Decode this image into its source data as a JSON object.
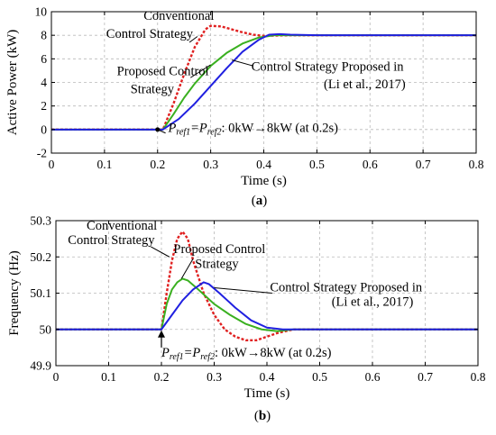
{
  "chart_data": [
    {
      "type": "line",
      "caption": "(a)",
      "xlabel": "Time (s)",
      "ylabel": "Active Power (kW)",
      "xlim": [
        0,
        0.8
      ],
      "ylim": [
        -2,
        10
      ],
      "xticks": [
        "0",
        "0.1",
        "0.2",
        "0.3",
        "0.4",
        "0.5",
        "0.6",
        "0.7",
        "0.8"
      ],
      "yticks": [
        "-2",
        "0",
        "2",
        "4",
        "6",
        "8",
        "10"
      ],
      "grid": true,
      "series": [
        {
          "name": "Conventional Control Strategy",
          "color": "#e02020",
          "style": "dashed",
          "x": [
            0,
            0.2,
            0.21,
            0.23,
            0.25,
            0.27,
            0.29,
            0.3,
            0.32,
            0.34,
            0.36,
            0.38,
            0.4,
            0.42,
            0.45,
            0.5,
            0.6,
            0.7,
            0.8
          ],
          "y": [
            0,
            0,
            0,
            2.2,
            4.7,
            7.0,
            8.5,
            8.8,
            8.75,
            8.5,
            8.25,
            8.05,
            7.95,
            7.97,
            8.0,
            8.0,
            8.0,
            8.0,
            8.0
          ]
        },
        {
          "name": "Proposed Control Strategy",
          "color": "#3ab020",
          "style": "solid",
          "x": [
            0,
            0.2,
            0.21,
            0.23,
            0.25,
            0.27,
            0.3,
            0.33,
            0.36,
            0.39,
            0.42,
            0.45,
            0.5,
            0.6,
            0.7,
            0.8
          ],
          "y": [
            0,
            0,
            0,
            1.3,
            2.7,
            3.9,
            5.4,
            6.5,
            7.3,
            7.8,
            8.0,
            8.0,
            8.0,
            8.0,
            8.0,
            8.0
          ]
        },
        {
          "name": "Control Strategy Proposed in (Li et al., 2017)",
          "color": "#2020e0",
          "style": "solid",
          "x": [
            0,
            0.2,
            0.21,
            0.24,
            0.27,
            0.3,
            0.33,
            0.36,
            0.39,
            0.41,
            0.43,
            0.45,
            0.5,
            0.6,
            0.7,
            0.8
          ],
          "y": [
            0,
            0,
            0,
            0.9,
            2.2,
            3.7,
            5.2,
            6.6,
            7.6,
            8.05,
            8.1,
            8.05,
            8.0,
            8.0,
            8.0,
            8.0
          ]
        }
      ],
      "annotations": [
        {
          "text": "Conventional",
          "x": 0.24,
          "y": 9.3
        },
        {
          "text": "Control Strategy",
          "x": 0.185,
          "y": 7.8
        },
        {
          "text": "Proposed Control",
          "x": 0.21,
          "y": 4.6
        },
        {
          "text": "Strategy",
          "x": 0.19,
          "y": 3.1
        },
        {
          "text": "Control Strategy Proposed in",
          "x": 0.52,
          "y": 5.0
        },
        {
          "text": "(Li et al., 2017)",
          "x": 0.59,
          "y": 3.5
        },
        {
          "text": "P",
          "sub": "ref1",
          "text2": "=P",
          "sub2": "ref2",
          "text3": ": 0kW→8kW (at 0.2s)",
          "x": 0.22,
          "y": -0.2
        }
      ]
    },
    {
      "type": "line",
      "caption": "(b)",
      "xlabel": "Time (s)",
      "ylabel": "Frequency (Hz)",
      "xlim": [
        0,
        0.8
      ],
      "ylim": [
        49.9,
        50.3
      ],
      "xticks": [
        "0",
        "0.1",
        "0.2",
        "0.3",
        "0.4",
        "0.5",
        "0.6",
        "0.7",
        "0.8"
      ],
      "yticks": [
        "49.9",
        "50",
        "50.1",
        "50.2",
        "50.3"
      ],
      "grid": true,
      "series": [
        {
          "name": "Conventional Control Strategy",
          "color": "#e02020",
          "style": "dashed",
          "x": [
            0,
            0.2,
            0.21,
            0.22,
            0.23,
            0.24,
            0.25,
            0.26,
            0.28,
            0.3,
            0.32,
            0.34,
            0.36,
            0.38,
            0.4,
            0.42,
            0.45,
            0.5,
            0.6,
            0.7,
            0.8
          ],
          "y": [
            50,
            50,
            50.1,
            50.19,
            50.25,
            50.27,
            50.25,
            50.19,
            50.1,
            50.04,
            50.0,
            49.98,
            49.97,
            49.97,
            49.98,
            49.99,
            50.0,
            50.0,
            50.0,
            50.0,
            50.0
          ]
        },
        {
          "name": "Proposed Control Strategy",
          "color": "#3ab020",
          "style": "solid",
          "x": [
            0,
            0.2,
            0.21,
            0.22,
            0.23,
            0.24,
            0.25,
            0.27,
            0.3,
            0.33,
            0.36,
            0.39,
            0.42,
            0.45,
            0.5,
            0.6,
            0.7,
            0.8
          ],
          "y": [
            50,
            50,
            50.07,
            50.11,
            50.13,
            50.14,
            50.135,
            50.11,
            50.07,
            50.04,
            50.015,
            50.0,
            49.995,
            50.0,
            50.0,
            50.0,
            50.0,
            50.0
          ]
        },
        {
          "name": "Control Strategy Proposed in (Li et al., 2017)",
          "color": "#2020e0",
          "style": "solid",
          "x": [
            0,
            0.2,
            0.22,
            0.24,
            0.26,
            0.28,
            0.29,
            0.31,
            0.34,
            0.37,
            0.4,
            0.43,
            0.45,
            0.5,
            0.6,
            0.7,
            0.8
          ],
          "y": [
            50,
            50,
            50.04,
            50.08,
            50.11,
            50.13,
            50.125,
            50.1,
            50.06,
            50.025,
            50.005,
            50.0,
            50.0,
            50.0,
            50.0,
            50.0,
            50.0
          ]
        }
      ],
      "annotations": [
        {
          "text": "Conventional",
          "x": 0.125,
          "y": 50.275
        },
        {
          "text": "Control Strategy",
          "x": 0.105,
          "y": 50.235
        },
        {
          "text": "Proposed Control",
          "x": 0.31,
          "y": 50.21
        },
        {
          "text": "Strategy",
          "x": 0.305,
          "y": 50.17
        },
        {
          "text": "Control Strategy Proposed in",
          "x": 0.55,
          "y": 50.105
        },
        {
          "text": "(Li et al., 2017)",
          "x": 0.6,
          "y": 50.065
        },
        {
          "text": "P",
          "sub": "ref1",
          "text2": "=P",
          "sub2": "ref2",
          "text3": ": 0kW→8kW (at 0.2s)",
          "x": 0.2,
          "y": 49.925
        }
      ]
    }
  ]
}
